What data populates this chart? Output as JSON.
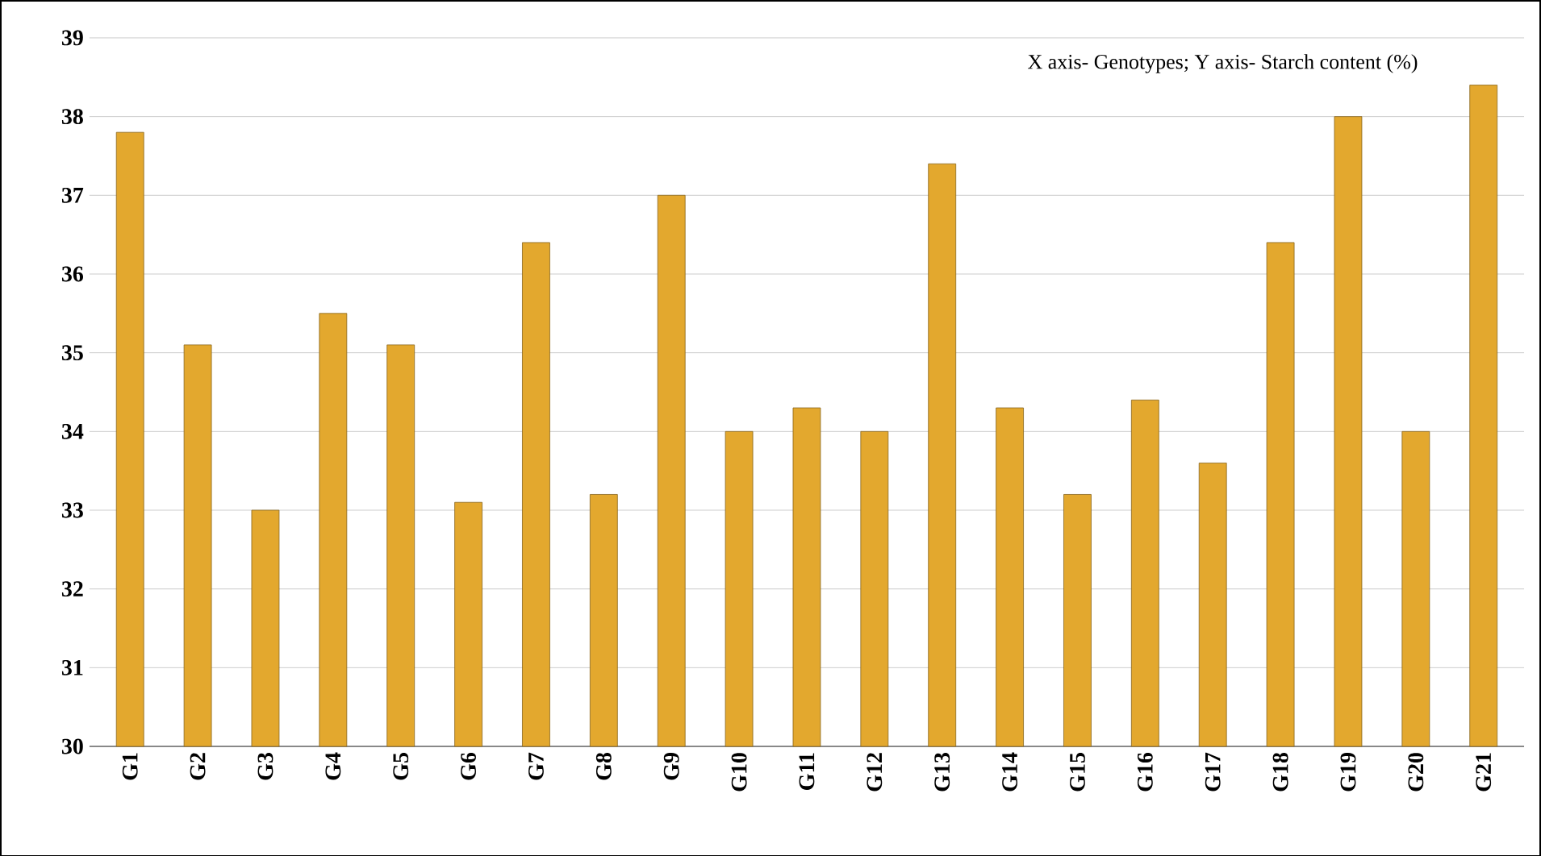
{
  "chart_data": {
    "type": "bar",
    "annotations": [
      "X axis- Genotypes; Y axis- Starch content (%)"
    ],
    "categories": [
      "G1",
      "G2",
      "G3",
      "G4",
      "G5",
      "G6",
      "G7",
      "G8",
      "G9",
      "G10",
      "G11",
      "G12",
      "G13",
      "G14",
      "G15",
      "G16",
      "G17",
      "G18",
      "G19",
      "G20",
      "G21"
    ],
    "values": [
      37.8,
      35.1,
      33.0,
      35.5,
      35.1,
      33.1,
      36.4,
      33.2,
      37.0,
      34.0,
      34.3,
      34.0,
      37.4,
      34.3,
      33.2,
      34.4,
      33.6,
      36.4,
      38.0,
      34.0,
      38.4
    ],
    "color": "#e3a82e",
    "ylim": [
      30,
      39
    ],
    "yticks": [
      30,
      31,
      32,
      33,
      34,
      35,
      36,
      37,
      38,
      39
    ],
    "grid": "y"
  }
}
